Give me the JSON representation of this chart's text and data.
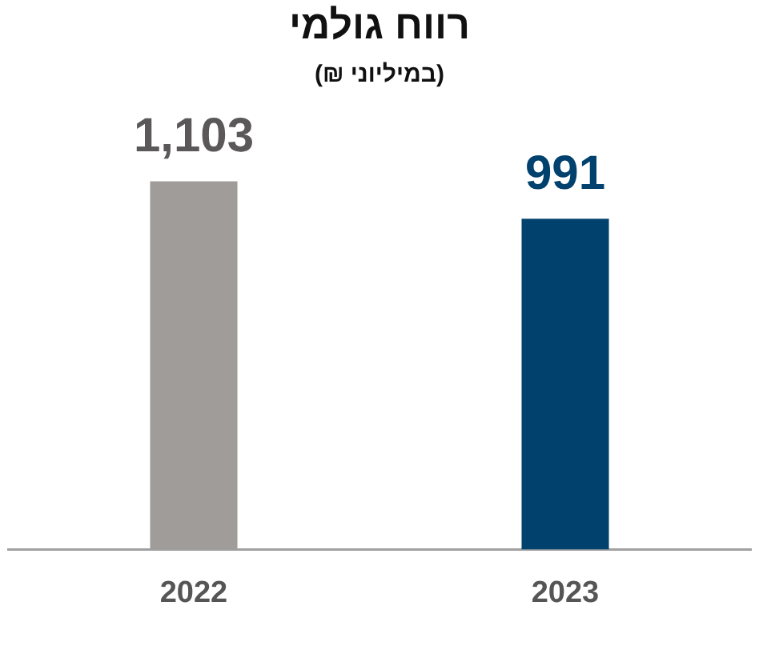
{
  "chart_data": {
    "type": "bar",
    "title": "רווח גולמי",
    "subtitle": "(במיליוני ₪)",
    "categories": [
      "2022",
      "2023"
    ],
    "values": [
      1103,
      991
    ],
    "colors": [
      "#a09c99",
      "#00416e"
    ],
    "value_labels": [
      "1,103",
      "991"
    ],
    "grid": false,
    "legend": false
  }
}
